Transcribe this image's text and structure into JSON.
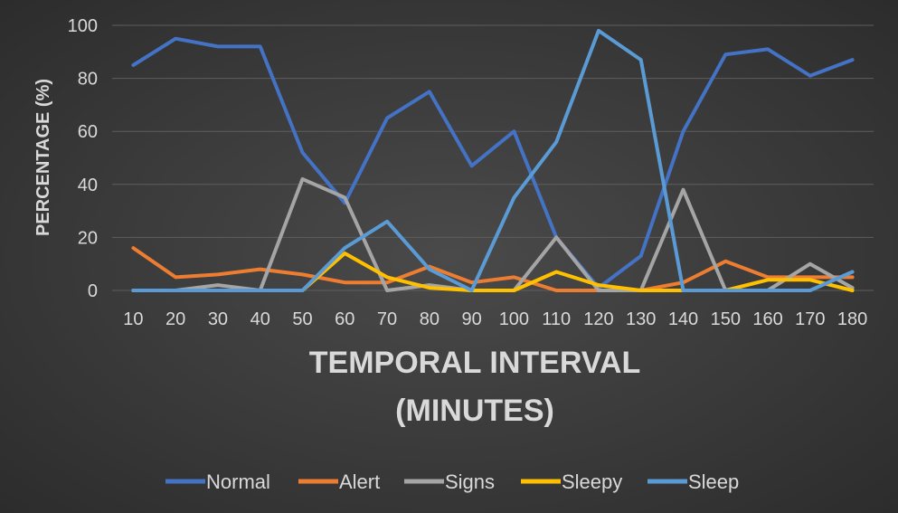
{
  "chart_data": {
    "type": "line",
    "title": "",
    "xlabel_lines": [
      "TEMPORAL INTERVAL",
      "(MINUTES)"
    ],
    "ylabel": "PERCENTAGE (%)",
    "ylim": [
      0,
      100
    ],
    "yticks": [
      0,
      20,
      40,
      60,
      80,
      100
    ],
    "categories": [
      "10",
      "20",
      "30",
      "40",
      "50",
      "60",
      "70",
      "80",
      "90",
      "100",
      "110",
      "120",
      "130",
      "140",
      "150",
      "160",
      "170",
      "180"
    ],
    "grid": true,
    "legend_position": "bottom",
    "series": [
      {
        "name": "Normal",
        "color": "#4472C4",
        "values": [
          85,
          95,
          92,
          92,
          52,
          33,
          65,
          75,
          47,
          60,
          20,
          1,
          13,
          60,
          89,
          91,
          81,
          87
        ]
      },
      {
        "name": "Alert",
        "color": "#ED7D31",
        "values": [
          16,
          5,
          6,
          8,
          6,
          3,
          3,
          9,
          3,
          5,
          0,
          0,
          0,
          3,
          11,
          5,
          5,
          5
        ]
      },
      {
        "name": "Signs",
        "color": "#A5A5A5",
        "values": [
          0,
          0,
          2,
          0,
          42,
          35,
          0,
          2,
          0,
          0,
          20,
          0,
          0,
          38,
          0,
          0,
          10,
          1
        ]
      },
      {
        "name": "Sleepy",
        "color": "#FFC000",
        "values": [
          0,
          0,
          0,
          0,
          0,
          14,
          5,
          1,
          0,
          0,
          7,
          2,
          0,
          0,
          0,
          4,
          4,
          0
        ]
      },
      {
        "name": "Sleep",
        "color": "#5B9BD5",
        "values": [
          0,
          0,
          0,
          0,
          0,
          16,
          26,
          8,
          0,
          35,
          56,
          98,
          87,
          0,
          0,
          0,
          0,
          7
        ]
      }
    ]
  }
}
